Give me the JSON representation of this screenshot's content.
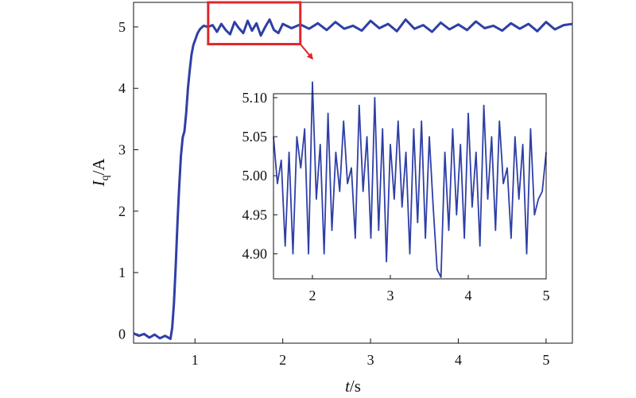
{
  "chart_data": [
    {
      "type": "line",
      "role": "main",
      "xlabel": {
        "italic": "t",
        "rest": "/s"
      },
      "ylabel": {
        "italic": "I",
        "sub": "q",
        "rest": "/A"
      },
      "xlim": [
        0.3,
        5.3
      ],
      "ylim": [
        -0.15,
        5.4
      ],
      "xticks": [
        1,
        2,
        3,
        4,
        5
      ],
      "yticks": [
        0,
        1,
        2,
        3,
        4,
        5
      ],
      "xtick_labels": [
        "1",
        "2",
        "3",
        "4",
        "5"
      ],
      "ytick_labels": [
        "0",
        "1",
        "2",
        "3",
        "4",
        "5"
      ],
      "series": [
        {
          "color": "#2f3fa6",
          "x": [
            0.3,
            0.36,
            0.42,
            0.48,
            0.54,
            0.6,
            0.66,
            0.72,
            0.74,
            0.76,
            0.78,
            0.8,
            0.82,
            0.84,
            0.86,
            0.88,
            0.9,
            0.92,
            0.94,
            0.96,
            0.98,
            1.0,
            1.03,
            1.06,
            1.1,
            1.15,
            1.2,
            1.25,
            1.3,
            1.35,
            1.4,
            1.45,
            1.5,
            1.55,
            1.6,
            1.65,
            1.7,
            1.75,
            1.8,
            1.85,
            1.9,
            1.95,
            2.0,
            2.1,
            2.2,
            2.3,
            2.4,
            2.5,
            2.6,
            2.7,
            2.8,
            2.9,
            3.0,
            3.1,
            3.2,
            3.3,
            3.4,
            3.5,
            3.6,
            3.7,
            3.8,
            3.9,
            4.0,
            4.1,
            4.2,
            4.3,
            4.4,
            4.5,
            4.6,
            4.7,
            4.8,
            4.9,
            5.0,
            5.1,
            5.2,
            5.3
          ],
          "y": [
            0.01,
            -0.03,
            0.0,
            -0.06,
            -0.01,
            -0.07,
            -0.03,
            -0.08,
            0.1,
            0.5,
            1.1,
            1.8,
            2.4,
            2.9,
            3.2,
            3.3,
            3.6,
            4.0,
            4.3,
            4.55,
            4.7,
            4.78,
            4.9,
            4.97,
            5.02,
            5.0,
            5.03,
            4.92,
            5.05,
            4.95,
            4.88,
            5.08,
            4.98,
            4.9,
            5.1,
            4.94,
            5.06,
            4.86,
            5.0,
            5.12,
            4.95,
            4.9,
            5.05,
            4.98,
            5.04,
            4.97,
            5.06,
            4.95,
            5.08,
            4.97,
            5.02,
            4.94,
            5.1,
            4.98,
            5.05,
            4.93,
            5.12,
            4.97,
            5.03,
            4.92,
            5.07,
            4.96,
            5.04,
            4.95,
            5.09,
            4.98,
            5.02,
            4.94,
            5.06,
            4.97,
            5.05,
            4.93,
            5.08,
            4.96,
            5.03,
            5.05
          ]
        }
      ],
      "zoom_box": {
        "x": [
          1.15,
          2.2
        ],
        "y": [
          4.72,
          5.4
        ],
        "color": "#e0262b"
      },
      "grid": false
    },
    {
      "type": "line",
      "role": "inset",
      "xlabel": "",
      "ylabel": "",
      "xlim": [
        1.5,
        5.0
      ],
      "ylim": [
        4.868,
        5.105
      ],
      "xticks": [
        2,
        3,
        4,
        5
      ],
      "yticks": [
        4.9,
        4.95,
        5.0,
        5.05,
        5.1
      ],
      "xtick_labels": [
        "2",
        "3",
        "4",
        "5"
      ],
      "ytick_labels": [
        "4.90",
        "4.95",
        "5.00",
        "5.05",
        "5.10"
      ],
      "series": [
        {
          "color": "#2f3fa6",
          "x": [
            1.5,
            1.55,
            1.6,
            1.65,
            1.7,
            1.75,
            1.8,
            1.85,
            1.9,
            1.95,
            2.0,
            2.05,
            2.1,
            2.15,
            2.2,
            2.25,
            2.3,
            2.35,
            2.4,
            2.45,
            2.5,
            2.55,
            2.6,
            2.65,
            2.7,
            2.75,
            2.8,
            2.85,
            2.9,
            2.95,
            3.0,
            3.05,
            3.1,
            3.15,
            3.2,
            3.25,
            3.3,
            3.35,
            3.4,
            3.45,
            3.5,
            3.55,
            3.6,
            3.65,
            3.7,
            3.75,
            3.8,
            3.85,
            3.9,
            3.95,
            4.0,
            4.05,
            4.1,
            4.15,
            4.2,
            4.25,
            4.3,
            4.35,
            4.4,
            4.45,
            4.5,
            4.55,
            4.6,
            4.65,
            4.7,
            4.75,
            4.8,
            4.85,
            4.9,
            4.95,
            5.0
          ],
          "y": [
            5.05,
            4.99,
            5.02,
            4.91,
            5.03,
            4.9,
            5.05,
            5.01,
            5.06,
            4.9,
            5.12,
            4.97,
            5.04,
            4.9,
            5.08,
            4.93,
            5.03,
            4.98,
            5.07,
            4.99,
            5.01,
            4.92,
            5.09,
            4.98,
            5.05,
            4.92,
            5.1,
            4.93,
            5.06,
            4.89,
            5.04,
            4.97,
            5.07,
            4.96,
            5.03,
            4.9,
            5.06,
            4.94,
            5.07,
            4.92,
            5.05,
            4.96,
            4.88,
            4.87,
            5.03,
            4.93,
            5.06,
            4.95,
            5.04,
            4.92,
            5.08,
            4.96,
            5.03,
            4.91,
            5.09,
            4.97,
            5.05,
            4.93,
            5.07,
            4.99,
            5.01,
            4.92,
            5.05,
            4.97,
            5.04,
            4.9,
            5.06,
            4.95,
            4.97,
            4.98,
            5.03
          ]
        }
      ],
      "grid": false
    }
  ]
}
